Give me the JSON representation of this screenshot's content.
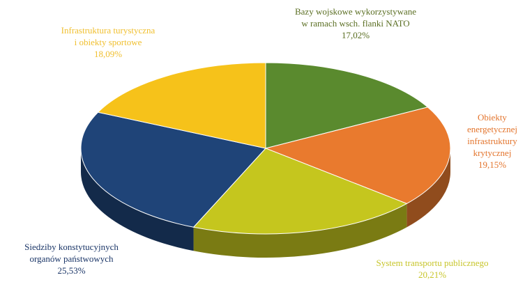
{
  "chart_data": {
    "type": "pie",
    "title": "",
    "style": "3d-tilted",
    "legend": "none",
    "slices": [
      {
        "label_lines": [
          "Bazy wojskowe wykorzystywane",
          "w ramach wsch. flanki NATO"
        ],
        "value": 17.02,
        "value_label": "17,02%",
        "color": "#5a8a2e"
      },
      {
        "label_lines": [
          "Obiekty",
          "energetycznej",
          "infrastruktury",
          "krytycznej"
        ],
        "value": 19.15,
        "value_label": "19,15%",
        "color": "#e97a2e"
      },
      {
        "label_lines": [
          "System transportu publicznego"
        ],
        "value": 20.21,
        "value_label": "20,21%",
        "color": "#c5c61e"
      },
      {
        "label_lines": [
          "Siedziby konstytucyjnych",
          "organów państwowych"
        ],
        "value": 25.53,
        "value_label": "25,53%",
        "color": "#1f4478"
      },
      {
        "label_lines": [
          "Infrastruktura turystyczna",
          "i obiekty sportowe"
        ],
        "value": 18.09,
        "value_label": "18,09%",
        "color": "#f6c21a"
      }
    ]
  }
}
